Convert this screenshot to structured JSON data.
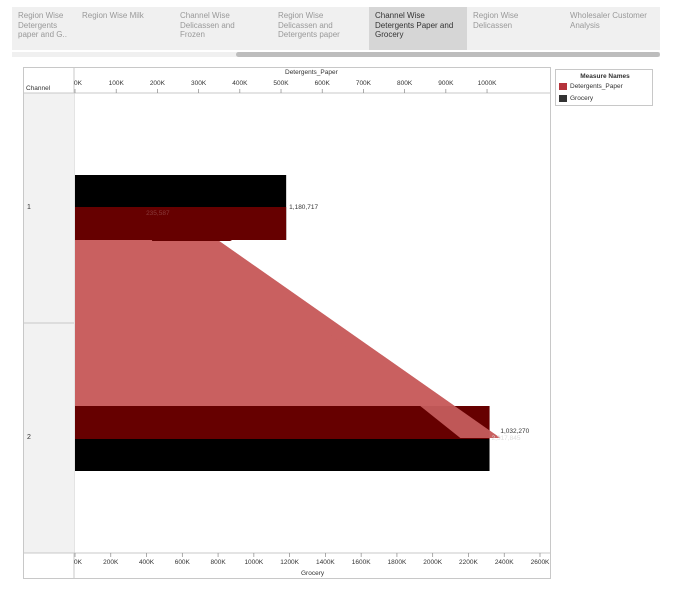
{
  "tabs": [
    {
      "lines": [
        "Region Wise",
        "Detergents",
        "paper and G.."
      ],
      "active": false
    },
    {
      "lines": [
        "Region Wise Milk"
      ],
      "active": false
    },
    {
      "lines": [
        "Channel Wise",
        "Delicassen and",
        "Frozen"
      ],
      "active": false
    },
    {
      "lines": [
        "Region Wise",
        "Delicassen and",
        "Detergents paper"
      ],
      "active": false
    },
    {
      "lines": [
        "Channel Wise",
        "Detergents Paper and",
        "Grocery"
      ],
      "active": true
    },
    {
      "lines": [
        "Region Wise",
        "Delicassen"
      ],
      "active": false
    },
    {
      "lines": [
        "Wholesaler Customer",
        "Analysis"
      ],
      "active": false
    }
  ],
  "chart_data": {
    "type": "bar",
    "row_header": "Channel",
    "categories": [
      "1",
      "2"
    ],
    "top_axis": {
      "label": "Detergents_Paper",
      "ticks": [
        "0K",
        "100K",
        "200K",
        "300K",
        "400K",
        "500K",
        "600K",
        "700K",
        "800K",
        "900K",
        "1000K"
      ],
      "range": [
        0,
        1080000
      ]
    },
    "bottom_axis": {
      "label": "Grocery",
      "ticks": [
        "0K",
        "200K",
        "400K",
        "600K",
        "800K",
        "1000K",
        "1200K",
        "1400K",
        "1600K",
        "1800K",
        "2000K",
        "2200K",
        "2400K",
        "2600K"
      ],
      "range": [
        0,
        2600000
      ]
    },
    "series": [
      {
        "name": "Detergents_Paper",
        "axis": "top",
        "values": [
          235587,
          1032270
        ],
        "labels": [
          "235,587",
          "1,032,270"
        ],
        "color": "#660000",
        "area_color": "#c96060"
      },
      {
        "name": "Grocery",
        "axis": "bottom",
        "values": [
          1180717,
          2317845
        ],
        "labels": [
          "1,180,717",
          "2,317,845"
        ],
        "color": "#000000"
      }
    ],
    "legend": {
      "title": "Measure Names",
      "position": "right",
      "items": [
        {
          "label": "Detergents_Paper",
          "color": "#b5333b"
        },
        {
          "label": "Grocery",
          "color": "#333333"
        }
      ]
    }
  }
}
